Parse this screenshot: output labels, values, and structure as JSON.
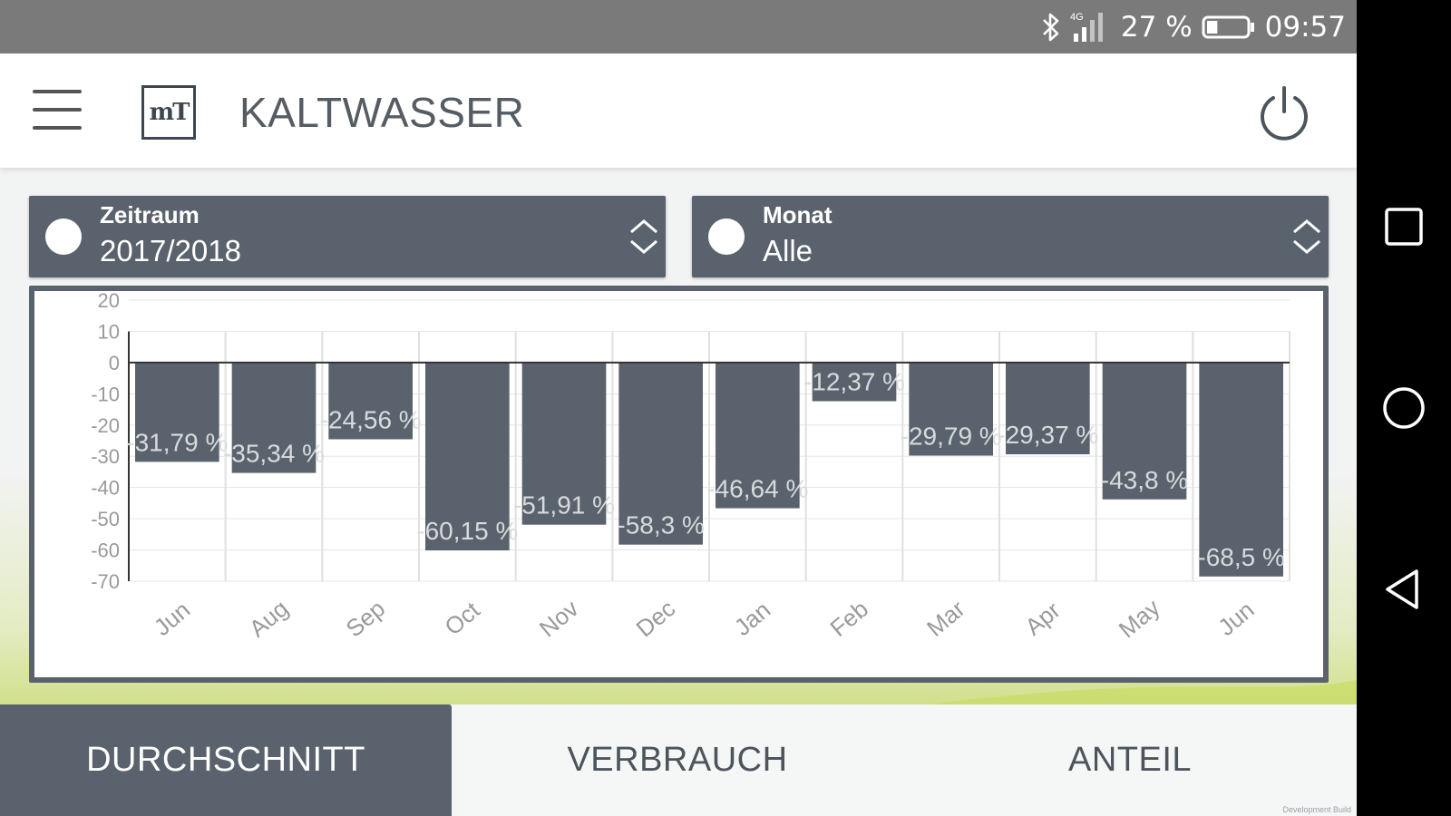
{
  "status_bar": {
    "network_label": "4G",
    "battery": "27 %",
    "time": "09:57",
    "icons": [
      "bluetooth-icon",
      "signal-icon",
      "battery-icon"
    ],
    "battery_level": 0.27
  },
  "header": {
    "title": "KALTWASSER",
    "logo_text": "mT",
    "icons": [
      "menu-icon",
      "power-icon"
    ]
  },
  "selectors": {
    "zeitraum": {
      "label": "Zeitraum",
      "value": "2017/2018"
    },
    "monat": {
      "label": "Monat",
      "value": "Alle"
    }
  },
  "chart_data": {
    "type": "bar",
    "categories": [
      "Jun",
      "Aug",
      "Sep",
      "Oct",
      "Nov",
      "Dec",
      "Jan",
      "Feb",
      "Mar",
      "Apr",
      "May",
      "Jun"
    ],
    "values": [
      -31.79,
      -35.34,
      -24.56,
      -60.15,
      -51.91,
      -58.3,
      -46.64,
      -12.37,
      -29.79,
      -29.37,
      -43.8,
      -68.5
    ],
    "data_labels": [
      "-31,79 %",
      "-35,34 %",
      "-24,56 %",
      "-60,15 %",
      "-51,91 %",
      "-58,3 %",
      "-46,64 %",
      "-12,37 %",
      "-29,79 %",
      "-29,37 %",
      "-43,8 %",
      "-68,5 %"
    ],
    "y_ticks": [
      "20",
      "10",
      "0",
      "-10",
      "-20",
      "-30",
      "-40",
      "-50",
      "-60",
      "-70"
    ],
    "y_tick_values": [
      20,
      10,
      0,
      -10,
      -20,
      -30,
      -40,
      -50,
      -60,
      -70
    ],
    "ylim": [
      -70,
      20
    ],
    "grid": true,
    "legend": "none",
    "bar_color": "#5a636d",
    "title": "",
    "xlabel": "",
    "ylabel": ""
  },
  "tabs": [
    {
      "id": "durchschnitt",
      "label": "DURCHSCHNITT",
      "active": true
    },
    {
      "id": "verbrauch",
      "label": "VERBRAUCH",
      "active": false
    },
    {
      "id": "anteil",
      "label": "ANTEIL",
      "active": false
    }
  ],
  "footer_note": "Development Build",
  "nav_bar": {
    "icons": [
      "recents-icon",
      "home-icon",
      "back-icon"
    ]
  },
  "colors": {
    "primary": "#5a636d",
    "accent_green": "#b6cf3c",
    "header_bg": "#ffffff",
    "status_bar": "#7a7a7a"
  }
}
